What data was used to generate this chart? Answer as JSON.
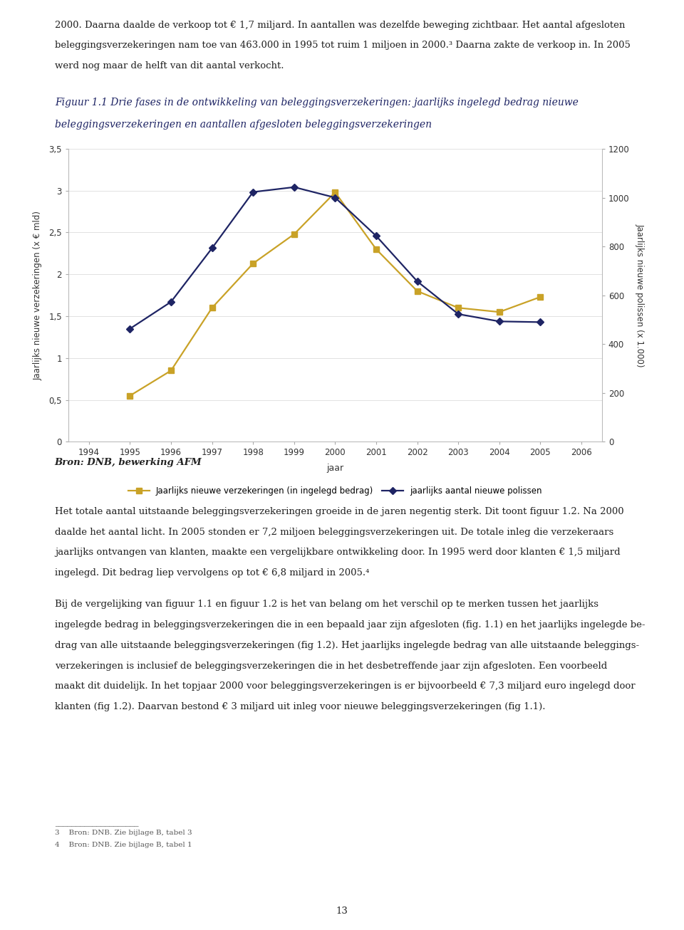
{
  "years": [
    1995,
    1996,
    1997,
    1998,
    1999,
    2000,
    2001,
    2002,
    2003,
    2004,
    2005
  ],
  "yellow_values": [
    0.55,
    0.85,
    1.6,
    2.13,
    2.48,
    2.98,
    2.3,
    1.8,
    1.6,
    1.55,
    1.73
  ],
  "blue_values_right": [
    463,
    573,
    793,
    1023,
    1043,
    1000,
    843,
    657,
    523,
    493,
    490
  ],
  "yellow_color": "#c9a227",
  "blue_color": "#1e2464",
  "left_ylabel": "Jaarlijks nieuwe verzekeringen (x € mld)",
  "right_ylabel": "Jaarlijks nieuwe polissen (x 1.000)",
  "xlabel": "jaar",
  "ylim_left": [
    0,
    3.5
  ],
  "ylim_right": [
    0,
    1200
  ],
  "yticks_left": [
    0,
    0.5,
    1,
    1.5,
    2,
    2.5,
    3,
    3.5
  ],
  "ytick_labels_left": [
    "0",
    "0,5",
    "1",
    "1,5",
    "2",
    "2,5",
    "3",
    "3,5"
  ],
  "yticks_right": [
    0,
    200,
    400,
    600,
    800,
    1000,
    1200
  ],
  "xlim": [
    1993.5,
    2006.5
  ],
  "xticks": [
    1994,
    1995,
    1996,
    1997,
    1998,
    1999,
    2000,
    2001,
    2002,
    2003,
    2004,
    2005,
    2006
  ],
  "legend_yellow": "Jaarlijks nieuwe verzekeringen (in ingelegd bedrag)",
  "legend_blue": "jaarlijks aantal nieuwe polissen",
  "background_color": "#ffffff",
  "axes_bg": "#ffffff",
  "grid_color": "#dddddd",
  "fig_title": "Figuur 1.1 Drie fases in de ontwikkeling van beleggingsverzekeringen: jaarlijks ingelegd bedrag nieuwe\nbeleggingsverzekeringen en aantallen afgesloten beleggingsverzekeringen",
  "source_text": "Bron: DNB, bewerking AFM",
  "top_text": "2000. Daarna daalde de verkoop tot € 1,7 miljard. In aantallen was dezelfde beweging zichtbaar. Het aantal afgesloten beleggingsverzekeringen nam toe van 463.000 in 1995 tot ruim 1 miljoen in 2000.³ Daarna zakte de verkoop in. In 2005 werd nog maar de helft van dit aantal verkocht.",
  "body_text1": "Het totale aantal uitstaande beleggingsverzekeringen groeide in de jaren negentig sterk. Dit toont figuur 1.2. Na 2000 daalde het aantal licht. In 2005 stonden er 7,2 miljoen beleggingsverzekeringen uit. De totale inleg die verzekeraars jaarlijks ontvangen van klanten, maakte een vergelijkbare ontwikkeling door. In 1995 werd door klanten € 1,5 miljard ingelegd. Dit bedrag liep vervolgens op tot € 6,8 miljard in 2005.⁴",
  "body_text2": "Bij de vergelijking van figuur 1.1 en figuur 1.2 is het van belang om het verschil op te merken tussen het jaarlijks ingelegde bedrag in beleggingsverzekeringen die in een bepaald jaar zijn afgesloten (fig. 1.1) en het jaarlijks ingelegde bedrag van alle uitstaande beleggingsverzekeringen (fig 1.2). Het jaarlijks ingelegde bedrag van alle uitstaande beleggingsverzekeringen is inclusief de beleggingsverzekeringen die in het desbetreffende jaar zijn afgesloten. Een voorbeeld maakt dit duidelijk. In het topjaar 2000 voor beleggingsverzekeringen is er bijvoorbeeld € 7,3 miljard euro ingelegd door klanten (fig 1.2). Daarvan bestond € 3 miljard uit inleg voor nieuwe beleggingsverzekeringen (fig 1.1).",
  "footnote3": "3    Bron: DNB. Zie bijlage B, tabel 3",
  "footnote4": "4    Bron: DNB. Zie bijlage B, tabel 1",
  "page_number": "13"
}
